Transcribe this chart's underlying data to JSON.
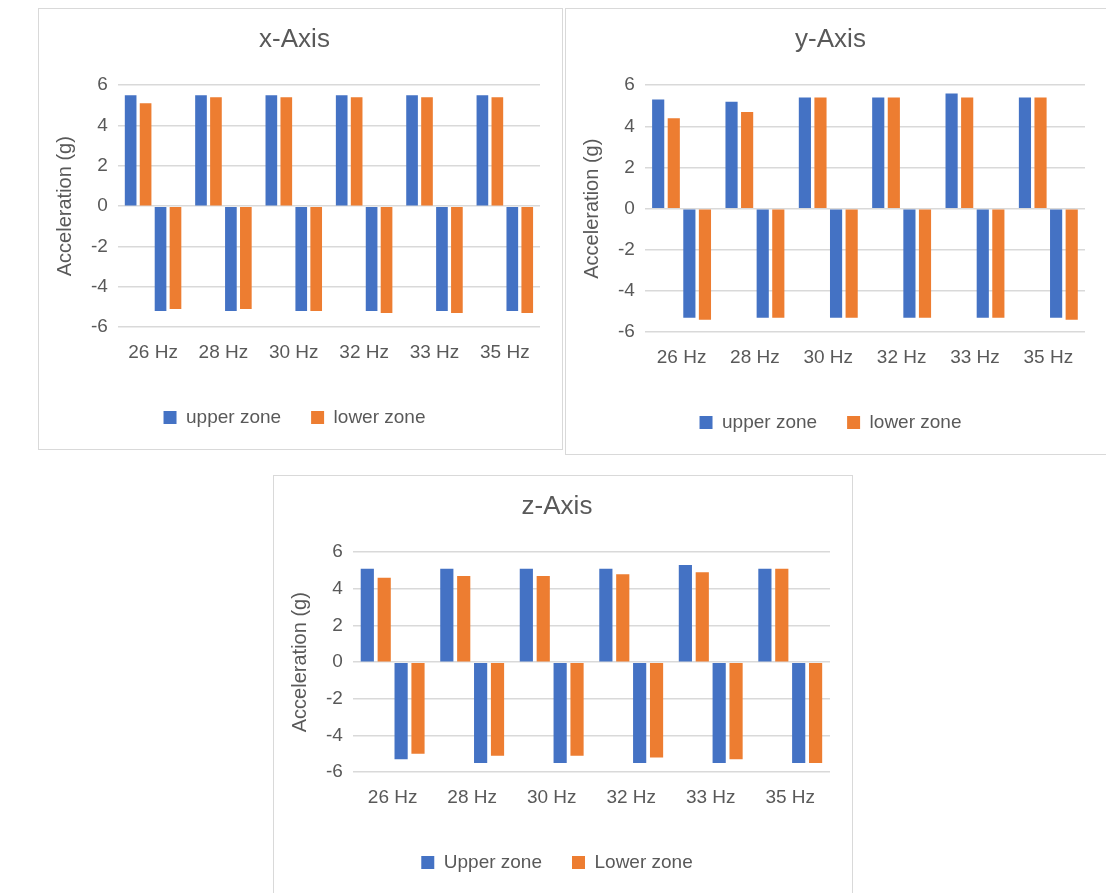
{
  "chart_data": [
    {
      "type": "bar",
      "title": "x-Axis",
      "ylabel": "Acceleration (g)",
      "categories": [
        "26 Hz",
        "28 Hz",
        "30 Hz",
        "32 Hz",
        "33 Hz",
        "35 Hz"
      ],
      "series": [
        {
          "name": "upper zone",
          "color": "#4472c4",
          "values": [
            5.5,
            5.5,
            5.5,
            5.5,
            5.5,
            5.5
          ]
        },
        {
          "name": "lower zone",
          "color": "#ed7d31",
          "values": [
            5.1,
            5.4,
            5.4,
            5.4,
            5.4,
            5.4
          ]
        },
        {
          "color": "#4472c4",
          "values": [
            -5.2,
            -5.2,
            -5.2,
            -5.2,
            -5.2,
            -5.2
          ]
        },
        {
          "color": "#ed7d31",
          "values": [
            -5.1,
            -5.1,
            -5.2,
            -5.3,
            -5.3,
            -5.3
          ]
        }
      ],
      "ylim": [
        -6,
        6
      ],
      "yticks": [
        -6,
        -4,
        -2,
        0,
        2,
        4,
        6
      ],
      "grid": "y",
      "legend": "bottom"
    },
    {
      "type": "bar",
      "title": "y-Axis",
      "ylabel": "Acceleration (g)",
      "categories": [
        "26 Hz",
        "28 Hz",
        "30 Hz",
        "32 Hz",
        "33 Hz",
        "35 Hz"
      ],
      "series": [
        {
          "name": "upper zone",
          "color": "#4472c4",
          "values": [
            5.3,
            5.2,
            5.4,
            5.4,
            5.6,
            5.4
          ]
        },
        {
          "name": "lower zone",
          "color": "#ed7d31",
          "values": [
            4.4,
            4.7,
            5.4,
            5.4,
            5.4,
            5.4
          ]
        },
        {
          "color": "#4472c4",
          "values": [
            -5.3,
            -5.3,
            -5.3,
            -5.3,
            -5.3,
            -5.3
          ]
        },
        {
          "color": "#ed7d31",
          "values": [
            -5.4,
            -5.3,
            -5.3,
            -5.3,
            -5.3,
            -5.4
          ]
        }
      ],
      "ylim": [
        -6,
        6
      ],
      "yticks": [
        -6,
        -4,
        -2,
        0,
        2,
        4,
        6
      ],
      "grid": "y",
      "legend": "bottom"
    },
    {
      "type": "bar",
      "title": "z-Axis",
      "ylabel": "Acceleration (g)",
      "categories": [
        "26 Hz",
        "28 Hz",
        "30 Hz",
        "32 Hz",
        "33 Hz",
        "35 Hz"
      ],
      "series": [
        {
          "name": "Upper zone",
          "color": "#4472c4",
          "values": [
            5.1,
            5.1,
            5.1,
            5.1,
            5.3,
            5.1
          ]
        },
        {
          "name": "Lower zone",
          "color": "#ed7d31",
          "values": [
            4.6,
            4.7,
            4.7,
            4.8,
            4.9,
            5.1
          ]
        },
        {
          "color": "#4472c4",
          "values": [
            -5.3,
            -5.5,
            -5.5,
            -5.5,
            -5.5,
            -5.5
          ]
        },
        {
          "color": "#ed7d31",
          "values": [
            -5.0,
            -5.1,
            -5.1,
            -5.2,
            -5.3,
            -5.5
          ]
        }
      ],
      "ylim": [
        -6,
        6
      ],
      "yticks": [
        -6,
        -4,
        -2,
        0,
        2,
        4,
        6
      ],
      "grid": "y",
      "legend": "bottom"
    }
  ]
}
